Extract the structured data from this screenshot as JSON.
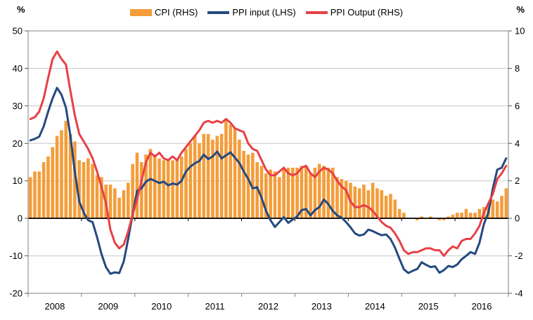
{
  "axes": {
    "left_unit": "%",
    "right_unit": "%",
    "left_ticks": [
      50,
      40,
      30,
      20,
      10,
      0,
      -10,
      -20
    ],
    "right_ticks": [
      10,
      8,
      6,
      4,
      2,
      0,
      -2,
      -4
    ],
    "x_labels": [
      "2008",
      "2009",
      "2010",
      "2011",
      "2012",
      "2013",
      "2014",
      "2015",
      "2016"
    ]
  },
  "legend": [
    {
      "label": "CPI (RHS)",
      "type": "bar",
      "color": "#F49D3A"
    },
    {
      "label": "PPI input (LHS)",
      "type": "line",
      "color": "#24497F"
    },
    {
      "label": "PPI Output (RHS)",
      "type": "line",
      "color": "#E74046"
    }
  ],
  "style": {
    "grid_color": "#C8C8C8",
    "frame_color": "#808080",
    "tick_color": "#595959",
    "zero_line_color": "#000000",
    "label_color": "#000000"
  },
  "chart_data": {
    "type": "bar",
    "subtype": "dual-axis bar + line combo, monthly series Jan 2008 - Dec 2016",
    "x_start": "2008-01",
    "x_end": "2016-12",
    "frequency": "monthly",
    "x_tick_labels": [
      "2008",
      "2009",
      "2010",
      "2011",
      "2012",
      "2013",
      "2014",
      "2015",
      "2016"
    ],
    "left_axis": {
      "label": "%",
      "range": [
        -20,
        50
      ],
      "ticks": [
        50,
        40,
        30,
        20,
        10,
        0,
        -10,
        -20
      ]
    },
    "right_axis": {
      "label": "%",
      "range": [
        -4,
        10
      ],
      "ticks": [
        10,
        8,
        6,
        4,
        2,
        0,
        -2,
        -4
      ]
    },
    "grid": true,
    "legend_position": "top-center",
    "series": [
      {
        "name": "CPI (RHS)",
        "type": "bar",
        "axis": "right",
        "color": "#F49D3A",
        "values": [
          2.2,
          2.5,
          2.5,
          3.0,
          3.3,
          3.8,
          4.4,
          4.7,
          5.2,
          4.5,
          4.1,
          3.1,
          3.0,
          3.2,
          2.9,
          2.3,
          2.2,
          1.8,
          1.8,
          1.6,
          1.1,
          1.5,
          1.9,
          2.9,
          3.5,
          3.0,
          3.4,
          3.7,
          3.4,
          3.2,
          3.1,
          3.1,
          3.1,
          3.2,
          3.3,
          3.7,
          4.0,
          4.4,
          4.0,
          4.5,
          4.5,
          4.2,
          4.4,
          4.5,
          5.2,
          5.0,
          4.8,
          4.2,
          3.6,
          3.4,
          3.5,
          3.0,
          2.8,
          2.4,
          2.6,
          2.5,
          2.2,
          2.7,
          2.7,
          2.7,
          2.7,
          2.8,
          2.8,
          2.4,
          2.7,
          2.9,
          2.8,
          2.7,
          2.7,
          2.2,
          2.1,
          2.0,
          1.9,
          1.7,
          1.6,
          1.8,
          1.5,
          1.9,
          1.6,
          1.5,
          1.2,
          1.3,
          1.0,
          0.5,
          0.3,
          0.0,
          0.0,
          -0.1,
          0.1,
          0.0,
          0.1,
          0.0,
          -0.1,
          -0.1,
          0.1,
          0.2,
          0.3,
          0.3,
          0.5,
          0.3,
          0.3,
          0.5,
          0.6,
          0.6,
          1.0,
          0.9,
          1.2,
          1.6
        ]
      },
      {
        "name": "PPI input (LHS)",
        "type": "line",
        "axis": "left",
        "color": "#24497F",
        "values": [
          20.8,
          21.2,
          21.8,
          24.5,
          28.5,
          32.0,
          34.8,
          33.0,
          29.5,
          22.0,
          12.5,
          4.5,
          1.5,
          -0.5,
          -1.0,
          -5.0,
          -9.5,
          -13.0,
          -14.8,
          -14.4,
          -14.6,
          -11.5,
          -5.5,
          1.0,
          7.3,
          8.0,
          9.8,
          10.5,
          10.0,
          9.4,
          9.8,
          8.8,
          9.3,
          9.0,
          10.0,
          12.5,
          13.8,
          14.7,
          15.3,
          17.0,
          15.8,
          16.5,
          17.8,
          16.0,
          16.8,
          17.6,
          16.2,
          14.8,
          12.5,
          10.5,
          8.0,
          8.3,
          5.5,
          2.0,
          -0.5,
          -2.3,
          -1.0,
          0.3,
          -1.2,
          -0.3,
          0.5,
          2.2,
          2.5,
          0.8,
          2.2,
          3.0,
          5.0,
          3.8,
          2.0,
          0.8,
          0.2,
          -1.0,
          -2.4,
          -4.0,
          -4.6,
          -4.3,
          -3.0,
          -3.4,
          -4.0,
          -4.5,
          -4.3,
          -5.5,
          -7.8,
          -10.8,
          -13.6,
          -14.6,
          -14.0,
          -13.5,
          -11.7,
          -12.4,
          -13.0,
          -12.8,
          -14.5,
          -13.8,
          -12.7,
          -13.0,
          -12.3,
          -10.9,
          -10.0,
          -9.0,
          -9.5,
          -6.5,
          -1.5,
          1.5,
          8.0,
          13.0,
          13.5,
          16.0
        ]
      },
      {
        "name": "PPI Output (RHS)",
        "type": "line",
        "axis": "right",
        "color": "#E74046",
        "values": [
          5.3,
          5.4,
          5.7,
          6.4,
          7.5,
          8.5,
          8.9,
          8.5,
          8.2,
          6.8,
          5.5,
          4.5,
          4.1,
          3.7,
          3.2,
          2.5,
          1.7,
          0.8,
          -0.6,
          -1.3,
          -1.6,
          -1.4,
          -0.7,
          0.2,
          1.0,
          2.0,
          3.0,
          3.5,
          3.3,
          3.5,
          3.2,
          3.1,
          3.3,
          3.1,
          3.5,
          3.8,
          4.1,
          4.4,
          4.7,
          5.1,
          5.2,
          5.1,
          5.2,
          5.1,
          5.3,
          5.1,
          4.8,
          4.7,
          4.6,
          4.0,
          3.7,
          3.6,
          3.1,
          2.6,
          2.3,
          2.3,
          2.5,
          2.7,
          2.4,
          2.3,
          2.4,
          2.7,
          2.8,
          2.4,
          2.2,
          2.5,
          2.7,
          2.6,
          2.4,
          2.0,
          1.7,
          1.5,
          0.9,
          0.6,
          0.6,
          0.7,
          0.6,
          0.4,
          0.1,
          -0.2,
          -0.4,
          -0.5,
          -0.8,
          -1.2,
          -1.7,
          -1.9,
          -1.8,
          -1.8,
          -1.7,
          -1.6,
          -1.6,
          -1.7,
          -1.7,
          -2.0,
          -1.7,
          -1.5,
          -1.6,
          -1.2,
          -1.1,
          -1.1,
          -0.8,
          -0.4,
          0.3,
          0.8,
          1.3,
          2.1,
          2.4,
          2.8
        ]
      }
    ]
  }
}
